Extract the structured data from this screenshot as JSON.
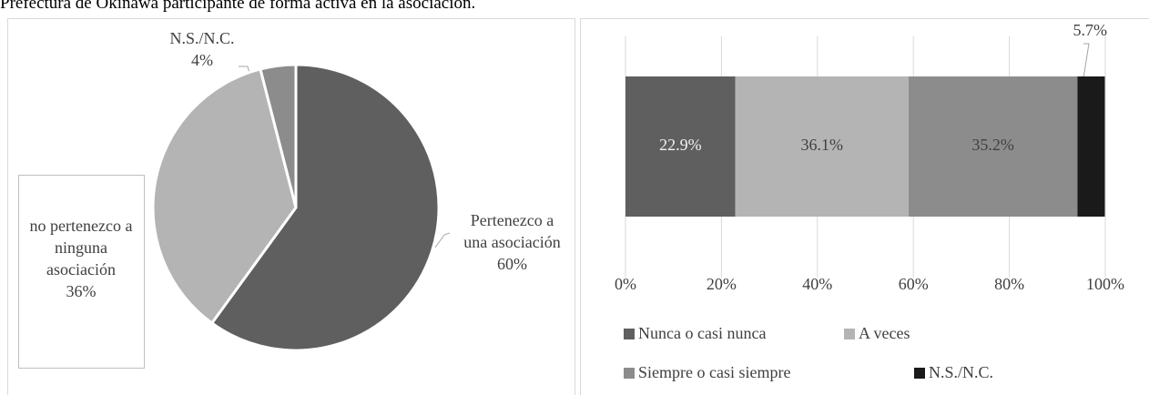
{
  "header": {
    "title": "Prefectura de Okinawa participante de forma activa en la asociación."
  },
  "chart_data": [
    {
      "type": "pie",
      "categories": [
        "Pertenezco a una asociación",
        "no pertenezco a ninguna asociación",
        "N.S./N.C."
      ],
      "values": [
        60,
        36,
        4
      ],
      "value_labels": [
        "60%",
        "36%",
        "4%"
      ],
      "colors": [
        "#5f5f5f",
        "#b4b4b4",
        "#8c8c8c"
      ]
    },
    {
      "type": "stacked_barh",
      "categories": [
        null
      ],
      "series": [
        {
          "name": "Nunca o casi nunca",
          "color": "#5f5f5f",
          "values": [
            22.9
          ],
          "value_labels": [
            "22.9%"
          ]
        },
        {
          "name": "A veces",
          "color": "#b4b4b4",
          "values": [
            36.1
          ],
          "value_labels": [
            "36.1%"
          ]
        },
        {
          "name": "Siempre o casi siempre",
          "color": "#8c8c8c",
          "values": [
            35.2
          ],
          "value_labels": [
            "35.2%"
          ]
        },
        {
          "name": "N.S./N.C.",
          "color": "#1a1a1a",
          "values": [
            5.7
          ],
          "value_labels": [
            "5.7%"
          ]
        }
      ],
      "xlim": [
        0,
        100
      ],
      "xticks": [
        {
          "value": 0,
          "label": "0%"
        },
        {
          "value": 20,
          "label": "20%"
        },
        {
          "value": 40,
          "label": "40%"
        },
        {
          "value": 60,
          "label": "60%"
        },
        {
          "value": 80,
          "label": "80%"
        },
        {
          "value": 100,
          "label": "100%"
        }
      ],
      "grid": true
    }
  ]
}
